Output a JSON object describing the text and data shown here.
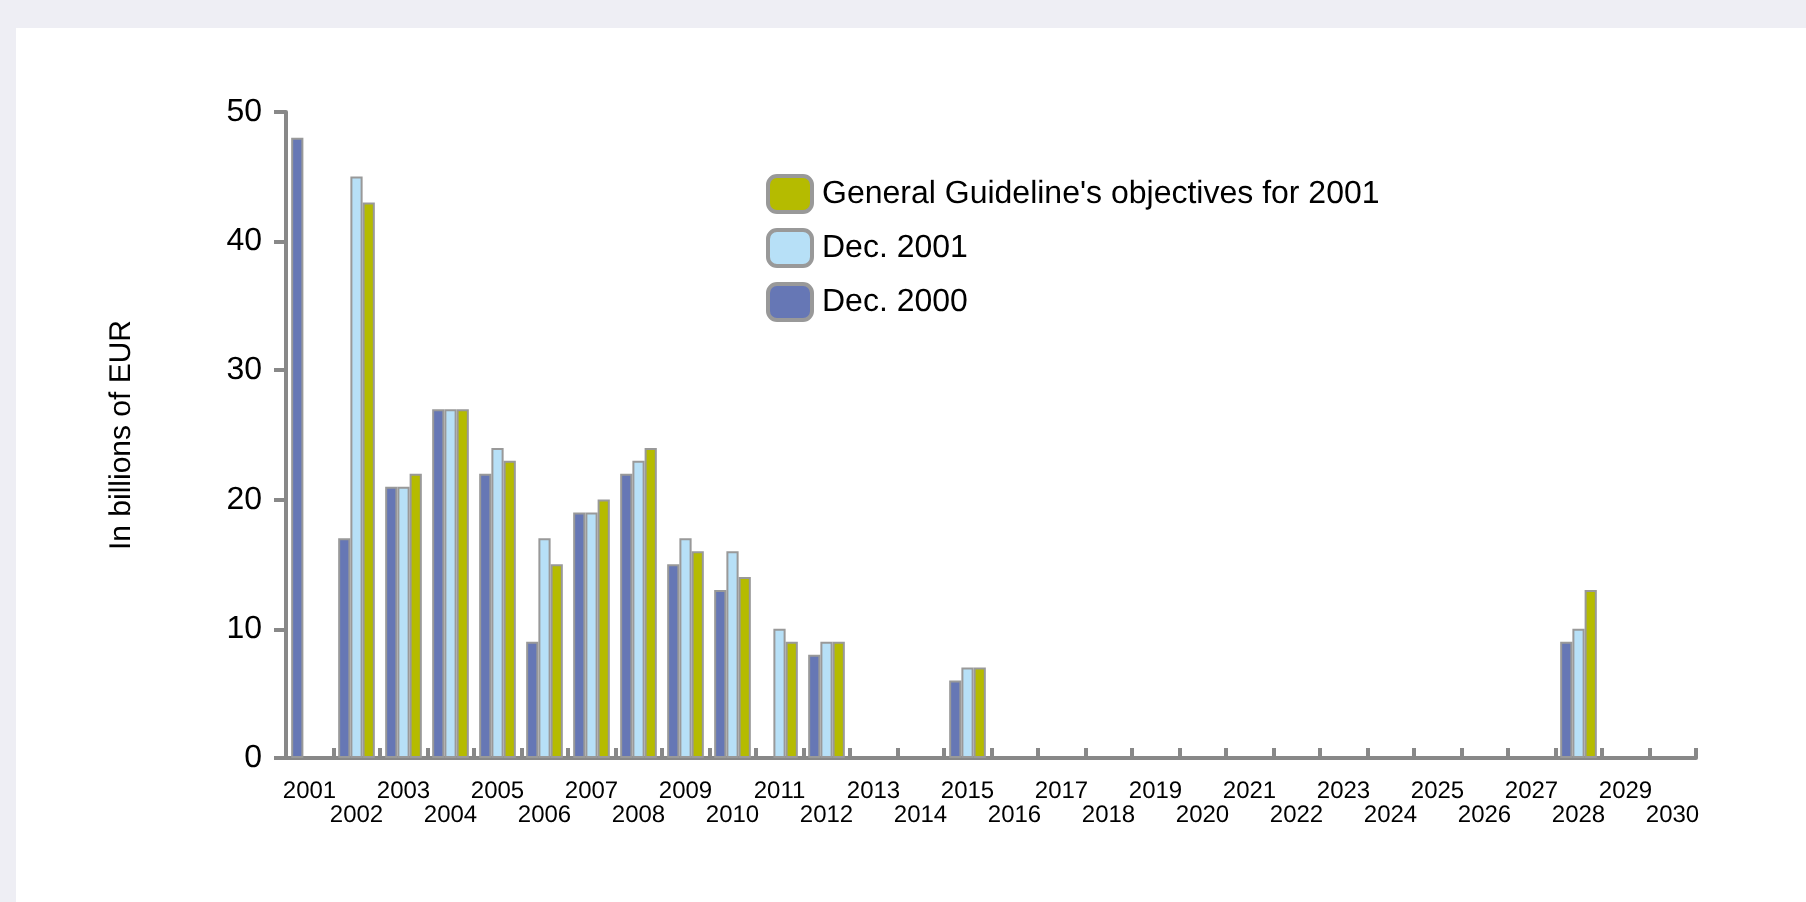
{
  "chart_data": {
    "type": "bar",
    "ylabel": "In billions of EUR",
    "categories": [
      "2001",
      "2002",
      "2003",
      "2004",
      "2005",
      "2006",
      "2007",
      "2008",
      "2009",
      "2010",
      "2011",
      "2012",
      "2013",
      "2014",
      "2015",
      "2016",
      "2017",
      "2018",
      "2019",
      "2020",
      "2021",
      "2022",
      "2023",
      "2024",
      "2025",
      "2026",
      "2027",
      "2028",
      "2029",
      "2030"
    ],
    "series": [
      {
        "name": "Dec. 2000",
        "color": "#6677b5",
        "values": [
          48,
          17,
          21,
          27,
          22,
          9,
          19,
          22,
          15,
          13,
          null,
          8,
          null,
          null,
          6,
          null,
          null,
          null,
          null,
          null,
          null,
          null,
          null,
          null,
          null,
          null,
          null,
          9,
          null,
          null
        ]
      },
      {
        "name": "Dec. 2001",
        "color": "#b7e0f7",
        "values": [
          null,
          45,
          21,
          27,
          24,
          17,
          19,
          23,
          17,
          16,
          10,
          9,
          null,
          null,
          7,
          null,
          null,
          null,
          null,
          null,
          null,
          null,
          null,
          null,
          null,
          null,
          null,
          10,
          null,
          null
        ]
      },
      {
        "name": "General Guideline's objectives for 2001",
        "color": "#b5bb00",
        "values": [
          null,
          43,
          22,
          27,
          23,
          15,
          20,
          24,
          16,
          14,
          9,
          9,
          null,
          null,
          7,
          null,
          null,
          null,
          null,
          null,
          null,
          null,
          null,
          null,
          null,
          null,
          null,
          13,
          null,
          null
        ]
      }
    ],
    "ylim": [
      0,
      50
    ],
    "yticks": [
      0,
      10,
      20,
      30,
      40,
      50
    ],
    "grid": false,
    "legend": "top right"
  }
}
